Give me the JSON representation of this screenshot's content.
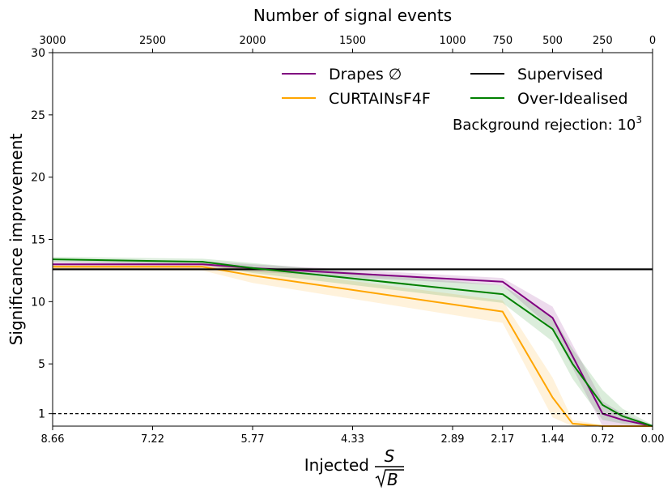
{
  "chart_data": {
    "type": "line",
    "title": "",
    "xlabel": "Injected S/√B",
    "xlabel_prefix": "Injected",
    "xlabel_num": "S",
    "xlabel_den": "B",
    "top_xlabel": "Number of signal events",
    "ylabel": "Significance improvement",
    "xlim": [
      0,
      3000
    ],
    "ylim": [
      0,
      30
    ],
    "x_reversed": true,
    "grid": false,
    "legend_position": "top-right",
    "x_top_ticks": [
      {
        "value": 3000,
        "label": "3000"
      },
      {
        "value": 2500,
        "label": "2500"
      },
      {
        "value": 2000,
        "label": "2000"
      },
      {
        "value": 1500,
        "label": "1500"
      },
      {
        "value": 1000,
        "label": "1000"
      },
      {
        "value": 750,
        "label": "750"
      },
      {
        "value": 500,
        "label": "500"
      },
      {
        "value": 250,
        "label": "250"
      },
      {
        "value": 0,
        "label": "0"
      }
    ],
    "x_bottom_ticks": [
      {
        "value": 3000,
        "label": "8.66"
      },
      {
        "value": 2500,
        "label": "7.22"
      },
      {
        "value": 2000,
        "label": "5.77"
      },
      {
        "value": 1500,
        "label": "4.33"
      },
      {
        "value": 1000,
        "label": "2.89"
      },
      {
        "value": 750,
        "label": "2.17"
      },
      {
        "value": 500,
        "label": "1.44"
      },
      {
        "value": 250,
        "label": "0.72"
      },
      {
        "value": 0,
        "label": "0.00"
      }
    ],
    "y_ticks": [
      {
        "value": 1,
        "label": "1"
      },
      {
        "value": 5,
        "label": "5"
      },
      {
        "value": 10,
        "label": "10"
      },
      {
        "value": 15,
        "label": "15"
      },
      {
        "value": 20,
        "label": "20"
      },
      {
        "value": 25,
        "label": "25"
      },
      {
        "value": 30,
        "label": "30"
      }
    ],
    "annotation": {
      "text": "Background rejection: 10",
      "superscript": "3"
    },
    "reference_lines": [
      {
        "y": 1,
        "style": "dashed",
        "color": "#000000"
      }
    ],
    "series": [
      {
        "name": "Drapes ∅",
        "color": "#800080",
        "x": [
          3000,
          2250,
          2000,
          750,
          500,
          250,
          150,
          0
        ],
        "y": [
          13.0,
          13.0,
          12.7,
          11.6,
          8.7,
          1.0,
          0.5,
          0.0
        ],
        "band": [
          0.25,
          0.25,
          0.3,
          0.3,
          0.9,
          1.0,
          0.5,
          0.1
        ]
      },
      {
        "name": "CURTAINsF4F",
        "color": "#FFA500",
        "x": [
          3000,
          2250,
          2000,
          750,
          500,
          400,
          250,
          0
        ],
        "y": [
          12.8,
          12.8,
          12.1,
          9.2,
          2.3,
          0.2,
          0.0,
          0.0
        ],
        "band": [
          0.25,
          0.3,
          0.6,
          0.9,
          1.6,
          0.3,
          0.1,
          0.1
        ]
      },
      {
        "name": "Supervised",
        "color": "#000000",
        "x": [
          3000,
          0
        ],
        "y": [
          12.6,
          12.6
        ],
        "band": [
          0.12,
          0.12
        ]
      },
      {
        "name": "Over-Idealised",
        "color": "#008000",
        "x": [
          3000,
          2250,
          2000,
          750,
          500,
          400,
          250,
          150,
          0
        ],
        "y": [
          13.4,
          13.2,
          12.7,
          10.6,
          7.8,
          5.0,
          1.7,
          0.8,
          0.0
        ],
        "band": [
          0.2,
          0.25,
          0.4,
          0.7,
          1.0,
          1.2,
          1.2,
          0.6,
          0.1
        ]
      }
    ]
  }
}
